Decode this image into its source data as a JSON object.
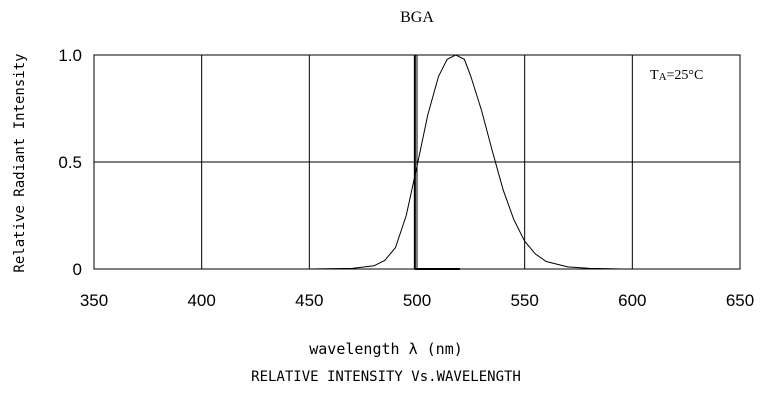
{
  "chart_data": {
    "type": "line",
    "title": "BGA",
    "xlabel": "wavelength λ (nm)",
    "ylabel": "Relative Radiant Intensity",
    "caption": "RELATIVE INTENSITY Vs.WAVELENGTH",
    "annotation": "TA=25°C",
    "annotation_sub": {
      "prefix": "T",
      "subscript": "A",
      "suffix": "=25°C"
    },
    "xlim": [
      350,
      650
    ],
    "ylim": [
      0,
      1.0
    ],
    "x_ticks": [
      350,
      400,
      450,
      500,
      550,
      600,
      650
    ],
    "y_ticks": [
      0,
      0.5,
      1.0
    ],
    "x_tick_labels": [
      "350",
      "400",
      "450",
      "500",
      "550",
      "600",
      "650"
    ],
    "y_tick_labels": [
      "0",
      "0.5",
      "1.0"
    ],
    "grid": true,
    "series": [
      {
        "x": [
          450,
          470,
          480,
          485,
          490,
          495,
          500,
          505,
          510,
          514,
          518,
          522,
          525,
          530,
          535,
          540,
          545,
          550,
          555,
          560,
          570,
          580,
          590,
          595
        ],
        "y": [
          0,
          0.003,
          0.015,
          0.04,
          0.1,
          0.25,
          0.48,
          0.72,
          0.9,
          0.98,
          1.0,
          0.98,
          0.9,
          0.74,
          0.55,
          0.37,
          0.23,
          0.13,
          0.07,
          0.035,
          0.01,
          0.003,
          0.001,
          0
        ]
      }
    ],
    "reference_line": {
      "x": 499,
      "y": [
        0,
        1.0
      ],
      "baseline_x": [
        499,
        520
      ]
    }
  }
}
